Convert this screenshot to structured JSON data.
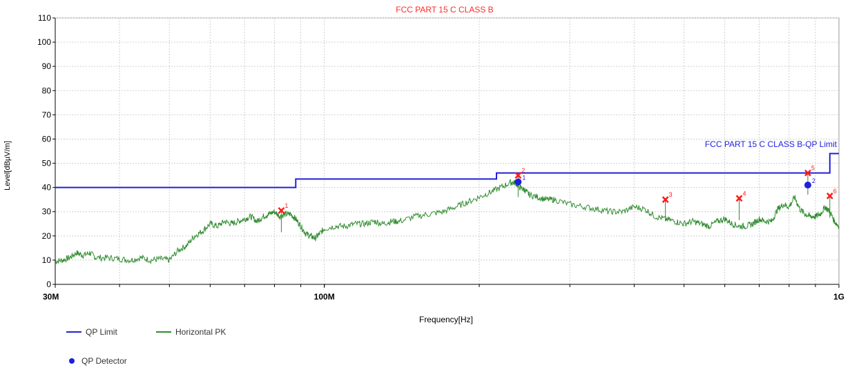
{
  "chart_data": {
    "type": "line",
    "title": "FCC PART 15 C CLASS B",
    "xlabel": "Frequency[Hz]",
    "ylabel": "Level[dBµV/m]",
    "x_scale": "log",
    "xlim": [
      30,
      1000
    ],
    "ylim": [
      0,
      110
    ],
    "yticks": [
      0,
      10,
      20,
      30,
      40,
      50,
      60,
      70,
      80,
      90,
      100,
      110
    ],
    "xtick_labels": [
      {
        "freq": 30,
        "label": "30M"
      },
      {
        "freq": 100,
        "label": "100M"
      },
      {
        "freq": 1000,
        "label": "1G"
      }
    ],
    "grid": true,
    "limit_label": "FCC PART 15 C CLASS B-QP Limit",
    "series": [
      {
        "name": "QP Limit",
        "color": "#1f1fdc",
        "step_points": [
          [
            30,
            40.0
          ],
          [
            88,
            40.0
          ],
          [
            88,
            43.5
          ],
          [
            216,
            43.5
          ],
          [
            216,
            46.0
          ],
          [
            960,
            46.0
          ],
          [
            960,
            54.0
          ],
          [
            1000,
            54.0
          ]
        ]
      },
      {
        "name": "Horizontal PK",
        "color": "#2e8b2e",
        "x": [
          30,
          31,
          32,
          33,
          34,
          35,
          36,
          38,
          40,
          42,
          44,
          46,
          48,
          50,
          52,
          54,
          56,
          58,
          60,
          62,
          64,
          66,
          68,
          70,
          72,
          74,
          76,
          78,
          80,
          82,
          84,
          86,
          88,
          90,
          92,
          94,
          96,
          98,
          100,
          105,
          110,
          115,
          120,
          125,
          130,
          135,
          140,
          150,
          160,
          170,
          180,
          190,
          200,
          210,
          220,
          230,
          235,
          240,
          245,
          250,
          260,
          270,
          280,
          300,
          320,
          340,
          360,
          380,
          400,
          420,
          440,
          460,
          480,
          500,
          520,
          540,
          560,
          580,
          600,
          620,
          640,
          660,
          680,
          700,
          720,
          740,
          760,
          780,
          800,
          820,
          840,
          860,
          880,
          900,
          920,
          940,
          960,
          980,
          1000
        ],
        "y": [
          9.5,
          10,
          11,
          13,
          12,
          13,
          11,
          11,
          10.5,
          10,
          11,
          10,
          10.5,
          10,
          14,
          16,
          20,
          22,
          25,
          24,
          26,
          25,
          26,
          27,
          28,
          26,
          28,
          29,
          30,
          28,
          29,
          29,
          27,
          24,
          21,
          20,
          19,
          21,
          23,
          24,
          24,
          25,
          25,
          26,
          25,
          26,
          26,
          28,
          29,
          30,
          32,
          34,
          36,
          38,
          40,
          42,
          42,
          40,
          39,
          37,
          36,
          35,
          35,
          33,
          32,
          31,
          30,
          30,
          32,
          31,
          28,
          27,
          26,
          25,
          26,
          25,
          24,
          26,
          27,
          25,
          24,
          24,
          25,
          27,
          26,
          26,
          31,
          33,
          32,
          36,
          31,
          29,
          28,
          28,
          29,
          32,
          30,
          26,
          24
        ]
      },
      {
        "name": "QP Detector",
        "color": "#1f1fdc",
        "points": [
          {
            "x": 238,
            "y": 42.3,
            "label": "1"
          },
          {
            "x": 870,
            "y": 41.0,
            "label": "2"
          }
        ]
      }
    ],
    "peak_markers": [
      {
        "x": 82.5,
        "y": 30.5,
        "label": "1"
      },
      {
        "x": 238,
        "y": 45.0,
        "label": "2"
      },
      {
        "x": 460,
        "y": 35.0,
        "label": "3"
      },
      {
        "x": 640,
        "y": 35.5,
        "label": "4"
      },
      {
        "x": 870,
        "y": 46.0,
        "label": "5"
      },
      {
        "x": 960,
        "y": 36.5,
        "label": "6"
      }
    ]
  }
}
